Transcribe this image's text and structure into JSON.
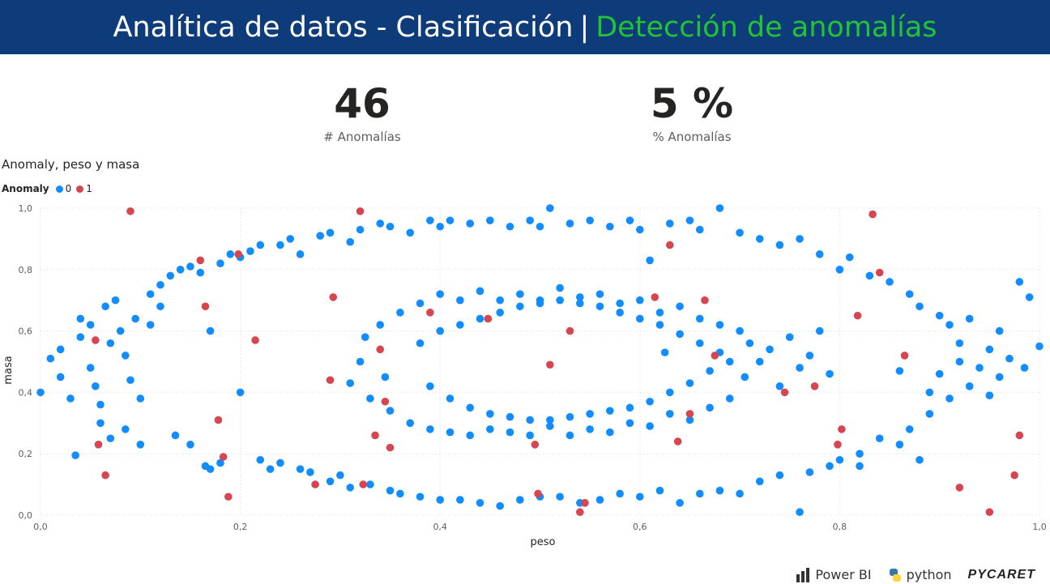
{
  "header": {
    "title_main": "Analítica de datos - Clasificación",
    "separator": "|",
    "title_accent": "Detección de anomalías",
    "background_color": "#0e3c7a",
    "accent_color": "#22c334"
  },
  "kpis": [
    {
      "value": "46",
      "label": "# Anomalías"
    },
    {
      "value": "5 %",
      "label": "% Anomalías"
    }
  ],
  "chart_data": {
    "type": "scatter",
    "title": "Anomaly, peso y masa",
    "xlabel": "peso",
    "ylabel": "masa",
    "xlim": [
      0,
      1
    ],
    "ylim": [
      0,
      1
    ],
    "xticks": [
      "0,0",
      "0,2",
      "0,4",
      "0,6",
      "0,8",
      "1,0"
    ],
    "yticks": [
      "0,0",
      "0,2",
      "0,4",
      "0,6",
      "0,8",
      "1,0"
    ],
    "grid": true,
    "legend_title": "Anomaly",
    "legend_position": "top-left",
    "series": [
      {
        "name": "0",
        "color": "#118dff",
        "points": [
          [
            0.0,
            0.4
          ],
          [
            0.01,
            0.51
          ],
          [
            0.02,
            0.54
          ],
          [
            0.02,
            0.45
          ],
          [
            0.03,
            0.38
          ],
          [
            0.035,
            0.195
          ],
          [
            0.04,
            0.58
          ],
          [
            0.04,
            0.64
          ],
          [
            0.05,
            0.62
          ],
          [
            0.05,
            0.48
          ],
          [
            0.055,
            0.42
          ],
          [
            0.06,
            0.36
          ],
          [
            0.06,
            0.3
          ],
          [
            0.065,
            0.68
          ],
          [
            0.07,
            0.56
          ],
          [
            0.07,
            0.25
          ],
          [
            0.075,
            0.7
          ],
          [
            0.08,
            0.6
          ],
          [
            0.085,
            0.52
          ],
          [
            0.085,
            0.28
          ],
          [
            0.09,
            0.44
          ],
          [
            0.095,
            0.64
          ],
          [
            0.1,
            0.38
          ],
          [
            0.1,
            0.23
          ],
          [
            0.11,
            0.72
          ],
          [
            0.11,
            0.62
          ],
          [
            0.12,
            0.75
          ],
          [
            0.12,
            0.68
          ],
          [
            0.13,
            0.78
          ],
          [
            0.135,
            0.26
          ],
          [
            0.14,
            0.8
          ],
          [
            0.15,
            0.81
          ],
          [
            0.15,
            0.23
          ],
          [
            0.16,
            0.79
          ],
          [
            0.165,
            0.16
          ],
          [
            0.17,
            0.6
          ],
          [
            0.17,
            0.15
          ],
          [
            0.18,
            0.82
          ],
          [
            0.18,
            0.17
          ],
          [
            0.19,
            0.85
          ],
          [
            0.2,
            0.4
          ],
          [
            0.2,
            0.84
          ],
          [
            0.21,
            0.86
          ],
          [
            0.22,
            0.88
          ],
          [
            0.22,
            0.18
          ],
          [
            0.23,
            0.15
          ],
          [
            0.24,
            0.88
          ],
          [
            0.24,
            0.17
          ],
          [
            0.25,
            0.9
          ],
          [
            0.26,
            0.85
          ],
          [
            0.26,
            0.15
          ],
          [
            0.27,
            0.14
          ],
          [
            0.28,
            0.91
          ],
          [
            0.29,
            0.92
          ],
          [
            0.29,
            0.11
          ],
          [
            0.3,
            0.13
          ],
          [
            0.31,
            0.89
          ],
          [
            0.31,
            0.09
          ],
          [
            0.32,
            0.93
          ],
          [
            0.33,
            0.1
          ],
          [
            0.34,
            0.95
          ],
          [
            0.35,
            0.94
          ],
          [
            0.35,
            0.08
          ],
          [
            0.36,
            0.07
          ],
          [
            0.37,
            0.92
          ],
          [
            0.38,
            0.06
          ],
          [
            0.39,
            0.96
          ],
          [
            0.4,
            0.94
          ],
          [
            0.4,
            0.05
          ],
          [
            0.41,
            0.96
          ],
          [
            0.42,
            0.05
          ],
          [
            0.43,
            0.95
          ],
          [
            0.44,
            0.04
          ],
          [
            0.45,
            0.96
          ],
          [
            0.46,
            0.03
          ],
          [
            0.47,
            0.94
          ],
          [
            0.48,
            0.05
          ],
          [
            0.49,
            0.96
          ],
          [
            0.5,
            0.94
          ],
          [
            0.5,
            0.06
          ],
          [
            0.51,
            1.0
          ],
          [
            0.52,
            0.06
          ],
          [
            0.53,
            0.95
          ],
          [
            0.54,
            0.04
          ],
          [
            0.55,
            0.96
          ],
          [
            0.56,
            0.05
          ],
          [
            0.57,
            0.94
          ],
          [
            0.58,
            0.07
          ],
          [
            0.59,
            0.96
          ],
          [
            0.6,
            0.93
          ],
          [
            0.6,
            0.06
          ],
          [
            0.61,
            0.83
          ],
          [
            0.62,
            0.08
          ],
          [
            0.63,
            0.95
          ],
          [
            0.64,
            0.04
          ],
          [
            0.65,
            0.96
          ],
          [
            0.66,
            0.93
          ],
          [
            0.66,
            0.07
          ],
          [
            0.68,
            1.0
          ],
          [
            0.68,
            0.08
          ],
          [
            0.7,
            0.92
          ],
          [
            0.7,
            0.07
          ],
          [
            0.72,
            0.9
          ],
          [
            0.72,
            0.11
          ],
          [
            0.74,
            0.88
          ],
          [
            0.74,
            0.13
          ],
          [
            0.76,
            0.9
          ],
          [
            0.76,
            0.01
          ],
          [
            0.77,
            0.14
          ],
          [
            0.78,
            0.85
          ],
          [
            0.79,
            0.16
          ],
          [
            0.8,
            0.8
          ],
          [
            0.8,
            0.18
          ],
          [
            0.81,
            0.84
          ],
          [
            0.82,
            0.16
          ],
          [
            0.82,
            0.2
          ],
          [
            0.83,
            0.78
          ],
          [
            0.84,
            0.25
          ],
          [
            0.85,
            0.76
          ],
          [
            0.86,
            0.23
          ],
          [
            0.86,
            0.47
          ],
          [
            0.87,
            0.72
          ],
          [
            0.87,
            0.28
          ],
          [
            0.88,
            0.68
          ],
          [
            0.88,
            0.18
          ],
          [
            0.89,
            0.4
          ],
          [
            0.89,
            0.33
          ],
          [
            0.9,
            0.65
          ],
          [
            0.9,
            0.46
          ],
          [
            0.91,
            0.38
          ],
          [
            0.91,
            0.62
          ],
          [
            0.92,
            0.5
          ],
          [
            0.92,
            0.56
          ],
          [
            0.93,
            0.42
          ],
          [
            0.93,
            0.64
          ],
          [
            0.94,
            0.48
          ],
          [
            0.95,
            0.54
          ],
          [
            0.95,
            0.39
          ],
          [
            0.96,
            0.6
          ],
          [
            0.96,
            0.45
          ],
          [
            0.97,
            0.51
          ],
          [
            0.98,
            0.76
          ],
          [
            0.985,
            0.48
          ],
          [
            0.99,
            0.71
          ],
          [
            1.0,
            0.55
          ],
          [
            0.31,
            0.43
          ],
          [
            0.32,
            0.5
          ],
          [
            0.325,
            0.58
          ],
          [
            0.33,
            0.38
          ],
          [
            0.34,
            0.62
          ],
          [
            0.345,
            0.45
          ],
          [
            0.35,
            0.34
          ],
          [
            0.36,
            0.66
          ],
          [
            0.37,
            0.3
          ],
          [
            0.38,
            0.69
          ],
          [
            0.39,
            0.28
          ],
          [
            0.4,
            0.72
          ],
          [
            0.41,
            0.27
          ],
          [
            0.42,
            0.7
          ],
          [
            0.43,
            0.26
          ],
          [
            0.44,
            0.73
          ],
          [
            0.45,
            0.28
          ],
          [
            0.46,
            0.7
          ],
          [
            0.47,
            0.27
          ],
          [
            0.48,
            0.72
          ],
          [
            0.49,
            0.26
          ],
          [
            0.5,
            0.7
          ],
          [
            0.51,
            0.29
          ],
          [
            0.52,
            0.74
          ],
          [
            0.53,
            0.26
          ],
          [
            0.54,
            0.71
          ],
          [
            0.55,
            0.28
          ],
          [
            0.56,
            0.72
          ],
          [
            0.57,
            0.27
          ],
          [
            0.58,
            0.69
          ],
          [
            0.59,
            0.3
          ],
          [
            0.6,
            0.7
          ],
          [
            0.61,
            0.29
          ],
          [
            0.62,
            0.66
          ],
          [
            0.625,
            0.53
          ],
          [
            0.63,
            0.33
          ],
          [
            0.64,
            0.68
          ],
          [
            0.65,
            0.31
          ],
          [
            0.66,
            0.64
          ],
          [
            0.67,
            0.35
          ],
          [
            0.68,
            0.62
          ],
          [
            0.69,
            0.38
          ],
          [
            0.7,
            0.6
          ],
          [
            0.705,
            0.45
          ],
          [
            0.71,
            0.56
          ],
          [
            0.72,
            0.5
          ],
          [
            0.73,
            0.54
          ],
          [
            0.74,
            0.42
          ],
          [
            0.75,
            0.58
          ],
          [
            0.76,
            0.48
          ],
          [
            0.77,
            0.52
          ],
          [
            0.78,
            0.6
          ],
          [
            0.79,
            0.46
          ],
          [
            0.38,
            0.56
          ],
          [
            0.39,
            0.42
          ],
          [
            0.4,
            0.6
          ],
          [
            0.41,
            0.38
          ],
          [
            0.42,
            0.62
          ],
          [
            0.43,
            0.35
          ],
          [
            0.44,
            0.64
          ],
          [
            0.45,
            0.33
          ],
          [
            0.46,
            0.66
          ],
          [
            0.47,
            0.32
          ],
          [
            0.48,
            0.68
          ],
          [
            0.49,
            0.31
          ],
          [
            0.5,
            0.69
          ],
          [
            0.51,
            0.31
          ],
          [
            0.52,
            0.7
          ],
          [
            0.53,
            0.32
          ],
          [
            0.54,
            0.69
          ],
          [
            0.55,
            0.33
          ],
          [
            0.56,
            0.68
          ],
          [
            0.57,
            0.34
          ],
          [
            0.58,
            0.66
          ],
          [
            0.59,
            0.35
          ],
          [
            0.6,
            0.64
          ],
          [
            0.61,
            0.37
          ],
          [
            0.62,
            0.62
          ],
          [
            0.63,
            0.4
          ],
          [
            0.64,
            0.59
          ],
          [
            0.65,
            0.43
          ],
          [
            0.66,
            0.56
          ],
          [
            0.67,
            0.47
          ],
          [
            0.68,
            0.53
          ],
          [
            0.69,
            0.5
          ]
        ]
      },
      {
        "name": "1",
        "color": "#d64550",
        "points": [
          [
            0.09,
            0.99
          ],
          [
            0.055,
            0.57
          ],
          [
            0.058,
            0.23
          ],
          [
            0.065,
            0.13
          ],
          [
            0.16,
            0.83
          ],
          [
            0.165,
            0.68
          ],
          [
            0.178,
            0.31
          ],
          [
            0.183,
            0.19
          ],
          [
            0.188,
            0.06
          ],
          [
            0.198,
            0.85
          ],
          [
            0.215,
            0.57
          ],
          [
            0.275,
            0.1
          ],
          [
            0.29,
            0.44
          ],
          [
            0.293,
            0.71
          ],
          [
            0.32,
            0.99
          ],
          [
            0.323,
            0.1
          ],
          [
            0.335,
            0.26
          ],
          [
            0.34,
            0.54
          ],
          [
            0.345,
            0.37
          ],
          [
            0.35,
            0.22
          ],
          [
            0.39,
            0.66
          ],
          [
            0.448,
            0.64
          ],
          [
            0.495,
            0.23
          ],
          [
            0.498,
            0.07
          ],
          [
            0.51,
            0.49
          ],
          [
            0.53,
            0.6
          ],
          [
            0.54,
            0.01
          ],
          [
            0.545,
            0.04
          ],
          [
            0.615,
            0.71
          ],
          [
            0.63,
            0.88
          ],
          [
            0.638,
            0.24
          ],
          [
            0.65,
            0.33
          ],
          [
            0.665,
            0.7
          ],
          [
            0.675,
            0.52
          ],
          [
            0.745,
            0.4
          ],
          [
            0.775,
            0.42
          ],
          [
            0.798,
            0.23
          ],
          [
            0.802,
            0.28
          ],
          [
            0.818,
            0.65
          ],
          [
            0.833,
            0.98
          ],
          [
            0.84,
            0.79
          ],
          [
            0.865,
            0.52
          ],
          [
            0.92,
            0.09
          ],
          [
            0.95,
            0.01
          ],
          [
            0.975,
            0.13
          ],
          [
            0.98,
            0.26
          ]
        ]
      }
    ]
  },
  "footer": {
    "logos": [
      "Power BI",
      "python",
      "PYCARET"
    ]
  }
}
